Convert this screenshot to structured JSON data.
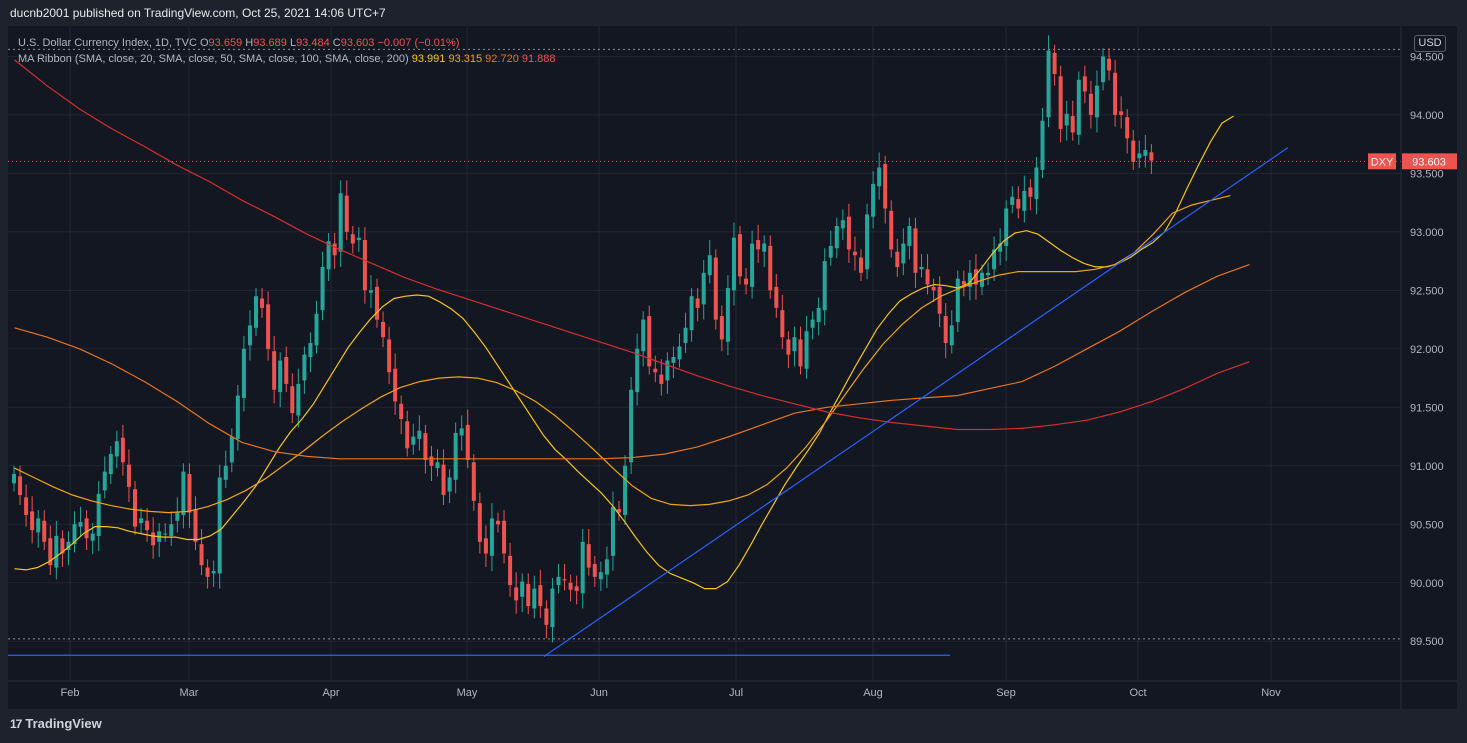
{
  "header": {
    "publish_line": "ducnb2001 published on TradingView.com, Oct 25, 2021 14:06 UTC+7"
  },
  "legend": {
    "symbol_line": "U.S. Dollar Currency Index, 1D, TVC",
    "o_label": "O",
    "o_value": "93.659",
    "h_label": "H",
    "h_value": "93.689",
    "l_label": "L",
    "l_value": "93.484",
    "c_label": "C",
    "c_value": "93.603",
    "change": "−0.007 (−0.01%)",
    "ma_line": "MA Ribbon (SMA, close, 20, SMA, close, 50, SMA, close, 100, SMA, close, 200)",
    "ma_values": [
      "93.991",
      "93.315",
      "92.720",
      "91.888"
    ]
  },
  "currency_badge": "USD",
  "footer": {
    "brand": "TradingView"
  },
  "colors": {
    "background": "#131722",
    "frame": "#1e222d",
    "grid": "#232732",
    "up": "#26a69a",
    "down": "#ef5350",
    "ma20": "#f5c518",
    "ma50": "#f0a50e",
    "ma100": "#e8731f",
    "ma200": "#d32f2f",
    "trendline": "#2962ff",
    "text": "#b2b5be"
  },
  "chart_data": {
    "type": "candlestick",
    "symbol": "DXY",
    "last_price": "93.603",
    "y_ticks": [
      "89.500",
      "90.000",
      "90.500",
      "91.000",
      "91.500",
      "92.000",
      "92.500",
      "93.000",
      "93.500",
      "94.000",
      "94.500"
    ],
    "x_ticks": [
      "Feb",
      "Mar",
      "Apr",
      "May",
      "Jun",
      "Jul",
      "Aug",
      "Sep",
      "Oct",
      "Nov"
    ],
    "ylim": [
      89.16,
      94.76
    ],
    "dotted_levels": [
      94.56,
      89.52
    ],
    "closes": [
      90.93,
      90.75,
      90.58,
      90.45,
      90.55,
      90.35,
      90.15,
      90.4,
      90.25,
      90.35,
      90.5,
      90.52,
      90.38,
      90.42,
      90.76,
      90.95,
      91.1,
      91.21,
      91.03,
      90.82,
      90.48,
      90.55,
      90.45,
      90.32,
      90.44,
      90.42,
      90.5,
      90.6,
      90.95,
      90.6,
      90.35,
      90.15,
      90.05,
      90.1,
      90.9,
      91.0,
      91.25,
      91.6,
      92.0,
      92.2,
      92.45,
      92.35,
      92.0,
      91.65,
      91.9,
      91.7,
      91.45,
      91.7,
      91.95,
      92.05,
      92.3,
      92.7,
      92.92,
      92.8,
      93.33,
      93.0,
      92.9,
      92.95,
      92.5,
      92.5,
      92.25,
      92.1,
      91.8,
      91.55,
      91.4,
      91.15,
      91.25,
      91.3,
      91.05,
      91.0,
      91.03,
      90.75,
      90.9,
      91.28,
      91.32,
      91.05,
      90.7,
      90.35,
      90.25,
      90.55,
      90.5,
      90.25,
      89.98,
      89.85,
      90.01,
      89.8,
      89.95,
      89.8,
      89.64,
      89.95,
      90.05,
      90.02,
      89.94,
      89.93,
      90.35,
      90.13,
      90.05,
      90.09,
      90.2,
      90.65,
      90.6,
      91.0,
      91.65,
      92.0,
      92.25,
      91.85,
      91.8,
      91.7,
      91.9,
      91.93,
      92.02,
      92.18,
      92.45,
      92.35,
      92.65,
      92.8,
      92.25,
      92.08,
      92.52,
      92.95,
      92.62,
      92.55,
      92.9,
      92.85,
      92.9,
      92.5,
      92.35,
      92.1,
      91.95,
      92.1,
      91.85,
      92.15,
      92.25,
      92.35,
      92.75,
      92.88,
      93.05,
      93.1,
      92.85,
      92.8,
      92.65,
      93.15,
      93.41,
      93.55,
      93.2,
      92.85,
      92.7,
      92.9,
      93.05,
      92.65,
      92.7,
      92.55,
      92.5,
      92.3,
      92.05,
      92.2,
      92.6,
      92.55,
      92.65,
      92.55,
      92.65,
      92.65,
      92.85,
      92.9,
      93.2,
      93.3,
      93.2,
      93.35,
      93.3,
      93.55,
      93.95,
      94.55,
      94.35,
      93.88,
      94.01,
      93.85,
      94.3,
      94.2,
      94.0,
      94.25,
      94.5,
      94.38,
      94.0,
      94.0,
      93.8,
      93.6,
      93.67,
      93.7,
      93.61
    ],
    "ma20": [
      90.12,
      90.11,
      90.13,
      90.18,
      90.25,
      90.33,
      90.42,
      90.48,
      90.48,
      90.47,
      90.44,
      90.42,
      90.4,
      90.39,
      90.39,
      90.37,
      90.37,
      90.4,
      90.46,
      90.58,
      90.7,
      90.83,
      90.99,
      91.15,
      91.29,
      91.4,
      91.53,
      91.69,
      91.85,
      92.01,
      92.14,
      92.26,
      92.36,
      92.43,
      92.45,
      92.46,
      92.45,
      92.4,
      92.34,
      92.26,
      92.14,
      92.01,
      91.86,
      91.71,
      91.56,
      91.41,
      91.26,
      91.14,
      91.05,
      90.95,
      90.86,
      90.77,
      90.66,
      90.53,
      90.39,
      90.26,
      90.15,
      90.08,
      90.04,
      90.0,
      89.95,
      89.95,
      90.01,
      90.15,
      90.32,
      90.5,
      90.67,
      90.84,
      90.99,
      91.13,
      91.28,
      91.47,
      91.65,
      91.83,
      92.0,
      92.17,
      92.3,
      92.41,
      92.47,
      92.52,
      92.55,
      92.54,
      92.52,
      92.56,
      92.68,
      92.81,
      92.92,
      92.99,
      93.01,
      92.98,
      92.91,
      92.84,
      92.78,
      92.73,
      92.7,
      92.7,
      92.73,
      92.78,
      92.85,
      92.91,
      93.0,
      93.17,
      93.38,
      93.58,
      93.77,
      93.93,
      93.99
    ],
    "ma20_start_index": 0,
    "ma50": [
      90.98,
      90.9,
      90.82,
      90.75,
      90.7,
      90.66,
      90.63,
      90.61,
      90.6,
      90.61,
      90.65,
      90.71,
      90.79,
      90.89,
      91.01,
      91.13,
      91.26,
      91.38,
      91.49,
      91.59,
      91.67,
      91.72,
      91.75,
      91.76,
      91.75,
      91.71,
      91.64,
      91.55,
      91.43,
      91.29,
      91.14,
      90.98,
      90.83,
      90.72,
      90.67,
      90.66,
      90.67,
      90.7,
      90.75,
      90.84,
      90.98,
      91.16,
      91.37,
      91.6,
      91.83,
      92.04,
      92.21,
      92.35,
      92.45,
      92.52,
      92.58,
      92.63,
      92.66,
      92.66,
      92.66,
      92.66,
      92.68,
      92.72,
      92.82,
      92.98,
      93.16,
      93.23,
      93.27,
      93.31
    ],
    "ma100": [
      92.18,
      92.1,
      92.0,
      91.87,
      91.72,
      91.55,
      91.36,
      91.2,
      91.12,
      91.08,
      91.06,
      91.06,
      91.06,
      91.06,
      91.06,
      91.06,
      91.06,
      91.06,
      91.06,
      91.07,
      91.1,
      91.16,
      91.25,
      91.35,
      91.45,
      91.5,
      91.53,
      91.56,
      91.58,
      91.6,
      91.66,
      91.72,
      91.85,
      92.0,
      92.15,
      92.32,
      92.48,
      92.62,
      92.72
    ],
    "ma200": [
      94.47,
      94.25,
      94.05,
      93.88,
      93.73,
      93.57,
      93.43,
      93.27,
      93.13,
      92.98,
      92.85,
      92.73,
      92.61,
      92.51,
      92.42,
      92.33,
      92.24,
      92.15,
      92.06,
      91.97,
      91.87,
      91.77,
      91.68,
      91.6,
      91.53,
      91.46,
      91.41,
      91.37,
      91.34,
      91.31,
      91.31,
      91.32,
      91.35,
      91.39,
      91.46,
      91.55,
      91.66,
      91.79,
      91.89
    ],
    "trendline": {
      "from": [
        "2021-05-20",
        89.37
      ],
      "to": [
        "2021-10-31",
        93.72
      ]
    },
    "support_line": {
      "from": [
        "2021-01-07",
        89.38
      ],
      "to": [
        "2021-08-23",
        89.38
      ]
    }
  }
}
